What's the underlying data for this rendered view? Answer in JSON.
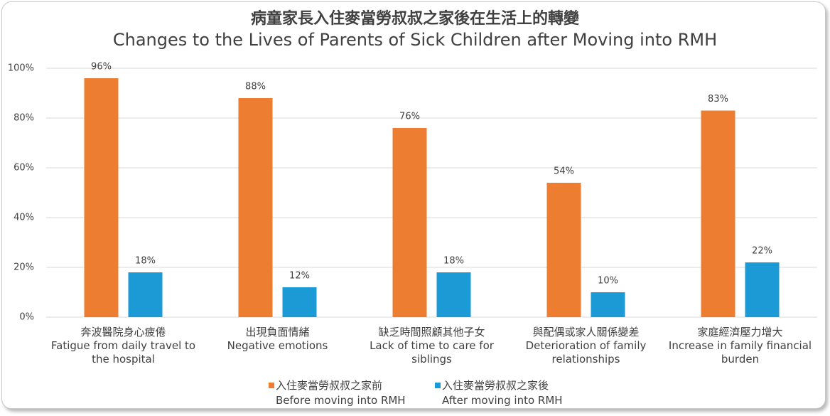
{
  "chart_data": {
    "type": "bar",
    "title": "病童家長入住麥當勞叔叔之家後在生活上的轉變",
    "subtitle": "Changes to the Lives of Parents of Sick Children after Moving into RMH",
    "categories": [
      "奔波醫院身心疲倦\nFatigue from daily travel to the hospital",
      "出現負面情緒\nNegative emotions",
      "缺乏時間照顧其他子女\nLack of time to care for siblings",
      "與配偶或家人關係變差\nDeterioration of family relationships",
      "家庭經濟壓力增大\nIncrease in family financial burden"
    ],
    "series": [
      {
        "name": "入住麥當勞叔叔之家前\nBefore moving into RMH",
        "color": "#ED7D31",
        "values": [
          96,
          88,
          76,
          54,
          83
        ],
        "value_labels": [
          "96%",
          "88%",
          "76%",
          "54%",
          "83%"
        ]
      },
      {
        "name": "入住麥當勞叔叔之家後\nAfter moving into RMH",
        "color": "#1B9AD6",
        "values": [
          18,
          12,
          18,
          10,
          22
        ],
        "value_labels": [
          "18%",
          "12%",
          "18%",
          "10%",
          "22%"
        ]
      }
    ],
    "ylim": [
      0,
      100
    ],
    "yticks": [
      {
        "value": 0,
        "label": "0%"
      },
      {
        "value": 20,
        "label": "20%"
      },
      {
        "value": 40,
        "label": "40%"
      },
      {
        "value": 60,
        "label": "60%"
      },
      {
        "value": 80,
        "label": "80%"
      },
      {
        "value": 100,
        "label": "100%"
      }
    ],
    "grid": true,
    "legend": "bottom"
  }
}
